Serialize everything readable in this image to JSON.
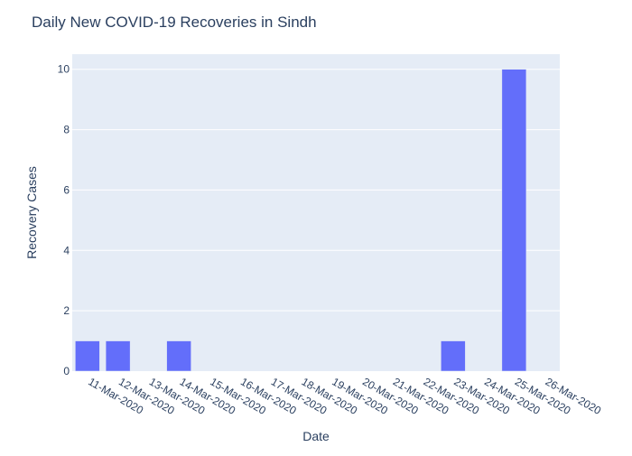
{
  "chart_data": {
    "type": "bar",
    "title": "Daily New COVID-19 Recoveries in Sindh",
    "xlabel": "Date",
    "ylabel": "Recovery Cases",
    "categories": [
      "11-Mar-2020",
      "12-Mar-2020",
      "13-Mar-2020",
      "14-Mar-2020",
      "15-Mar-2020",
      "16-Mar-2020",
      "17-Mar-2020",
      "18-Mar-2020",
      "19-Mar-2020",
      "20-Mar-2020",
      "21-Mar-2020",
      "22-Mar-2020",
      "23-Mar-2020",
      "24-Mar-2020",
      "25-Mar-2020",
      "26-Mar-2020"
    ],
    "values": [
      1,
      1,
      0,
      1,
      0,
      0,
      0,
      0,
      0,
      0,
      0,
      0,
      1,
      0,
      10,
      0
    ],
    "ylim": [
      0,
      10.5
    ],
    "yticks": [
      0,
      2,
      4,
      6,
      8,
      10
    ],
    "grid": true,
    "legend": "none",
    "colors": {
      "bar": "#636efa",
      "plot_bg": "#e5ecf6",
      "grid": "#ffffff",
      "text": "#2a3f5f"
    }
  }
}
